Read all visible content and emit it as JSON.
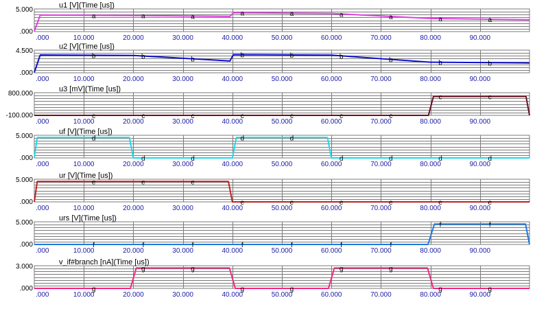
{
  "chart_data": [
    {
      "type": "line",
      "title": "u1 [V](Time [us])",
      "ylim_labels": [
        ".000",
        "5.000"
      ],
      "ylim": [
        0,
        5
      ],
      "x_tick_labels": [
        ".000",
        "10.000",
        "20.000",
        "30.000",
        "40.000",
        "50.000",
        "60.000",
        "70.000",
        "80.000",
        "90.000"
      ],
      "xlim": [
        0,
        100
      ],
      "color": "#e040e0",
      "marker_label": "a",
      "markers_x": [
        12,
        22,
        32,
        42,
        52,
        62,
        72,
        82,
        92
      ],
      "series": [
        {
          "x": [
            0,
            1.2,
            20,
            39.5,
            40.2,
            60,
            80,
            100
          ],
          "y": [
            0.05,
            3.65,
            3.55,
            3.35,
            4.15,
            4.0,
            2.9,
            2.6
          ]
        }
      ]
    },
    {
      "type": "line",
      "title": "u2 [V](Time [us])",
      "ylim_labels": [
        ".000",
        "4.500"
      ],
      "ylim": [
        0,
        4.5
      ],
      "x_tick_labels": [
        ".000",
        "10.000",
        "20.000",
        "30.000",
        "40.000",
        "50.000",
        "60.000",
        "70.000",
        "80.000",
        "90.000"
      ],
      "xlim": [
        0,
        100
      ],
      "color": "#1010d0",
      "marker_label": "b",
      "markers_x": [
        12,
        22,
        32,
        42,
        52,
        62,
        72,
        82,
        92
      ],
      "series": [
        {
          "x": [
            0,
            1.2,
            20,
            39.5,
            40.2,
            60,
            80,
            100
          ],
          "y": [
            0.05,
            3.55,
            3.45,
            2.35,
            3.6,
            3.5,
            2.1,
            1.95
          ]
        }
      ]
    },
    {
      "type": "line",
      "title": "u3 [mV](Time [us])",
      "ylim_labels": [
        "-100.000",
        "800.000"
      ],
      "ylim": [
        -100,
        800
      ],
      "x_tick_labels": [
        ".000",
        "10.000",
        "20.000",
        "30.000",
        "40.000",
        "50.000",
        "60.000",
        "70.000",
        "80.000",
        "90.000"
      ],
      "xlim": [
        0,
        100
      ],
      "color": "#6a1020",
      "marker_label": "c",
      "markers_x": [
        12,
        22,
        32,
        42,
        52,
        62,
        72,
        82,
        92
      ],
      "series": [
        {
          "x": [
            0,
            79.6,
            80.6,
            99.3,
            100
          ],
          "y": [
            -100,
            -100,
            650,
            650,
            -100
          ]
        }
      ]
    },
    {
      "type": "line",
      "title": "uf [V](Time [us])",
      "ylim_labels": [
        ".000",
        "5.000"
      ],
      "ylim": [
        0,
        5
      ],
      "x_tick_labels": [
        ".000",
        "10.000",
        "20.000",
        "30.000",
        "40.000",
        "50.000",
        "60.000",
        "70.000",
        "80.000",
        "90.000"
      ],
      "xlim": [
        0,
        100
      ],
      "color": "#20d8e8",
      "marker_label": "d",
      "markers_x": [
        12,
        22,
        32,
        42,
        52,
        62,
        72,
        82,
        92
      ],
      "series": [
        {
          "x": [
            0,
            0.6,
            19.2,
            20,
            40,
            40.8,
            59.2,
            60,
            100
          ],
          "y": [
            0,
            4.5,
            4.5,
            0,
            0,
            4.5,
            4.5,
            0,
            0
          ]
        }
      ]
    },
    {
      "type": "line",
      "title": "ur [V](Time [us])",
      "ylim_labels": [
        ".000",
        "5.000"
      ],
      "ylim": [
        0,
        5
      ],
      "x_tick_labels": [
        ".000",
        "10.000",
        "20.000",
        "30.000",
        "40.000",
        "50.000",
        "60.000",
        "70.000",
        "80.000",
        "90.000"
      ],
      "xlim": [
        0,
        100
      ],
      "color": "#c02020",
      "marker_label": "e",
      "markers_x": [
        12,
        22,
        32,
        42,
        52,
        62,
        72,
        82,
        92
      ],
      "series": [
        {
          "x": [
            0,
            0.6,
            39.2,
            40,
            100
          ],
          "y": [
            0,
            4.5,
            4.5,
            0,
            0
          ]
        }
      ]
    },
    {
      "type": "line",
      "title": "urs [V](Time [us])",
      "ylim_labels": [
        ".000",
        "5.000"
      ],
      "ylim": [
        0,
        5
      ],
      "x_tick_labels": [
        ".000",
        "10.000",
        "20.000",
        "30.000",
        "40.000",
        "50.000",
        "60.000",
        "70.000",
        "80.000",
        "90.000"
      ],
      "xlim": [
        0,
        100
      ],
      "color": "#1e7ae0",
      "marker_label": "f",
      "markers_x": [
        12,
        22,
        32,
        42,
        52,
        62,
        72,
        82,
        92
      ],
      "series": [
        {
          "x": [
            0,
            79.5,
            80.8,
            99.2,
            100
          ],
          "y": [
            0,
            0,
            4.5,
            4.5,
            0
          ]
        }
      ]
    },
    {
      "type": "line",
      "title": "v_if#branch [nA](Time [us])",
      "ylim_labels": [
        ".000",
        "3.000"
      ],
      "ylim": [
        0,
        3
      ],
      "x_tick_labels": [
        ".000",
        "10.000",
        "20.000",
        "30.000",
        "40.000",
        "50.000",
        "60.000",
        "70.000",
        "80.000",
        "90.000"
      ],
      "xlim": [
        0,
        100
      ],
      "color": "#f02880",
      "marker_label": "g",
      "markers_x": [
        12,
        22,
        32,
        42,
        52,
        62,
        72,
        82,
        92
      ],
      "series": [
        {
          "x": [
            0,
            19.4,
            20.6,
            39.4,
            40.6,
            59.4,
            60.6,
            79.4,
            80.6,
            100
          ],
          "y": [
            0,
            0,
            2.7,
            2.7,
            0,
            0,
            2.7,
            2.7,
            0,
            0
          ]
        }
      ]
    }
  ]
}
